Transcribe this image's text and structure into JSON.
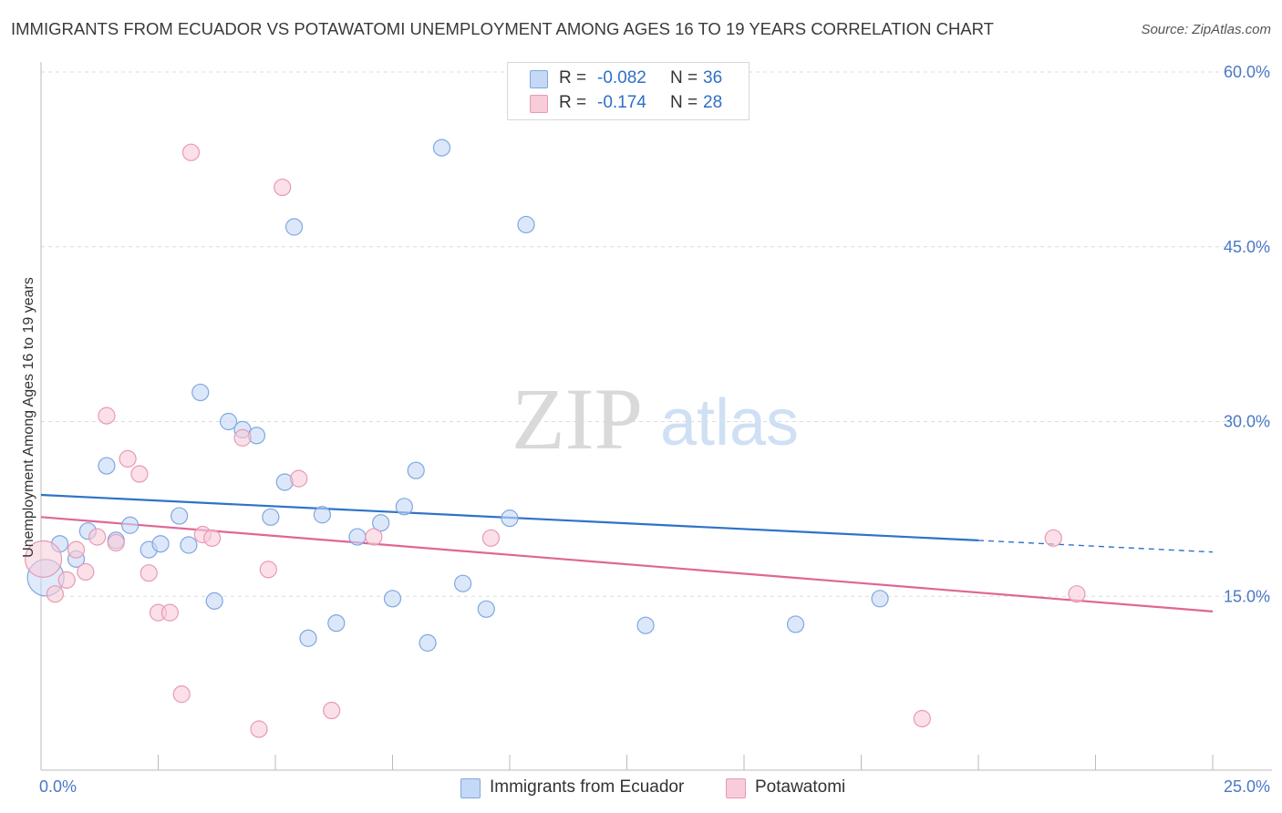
{
  "title": "IMMIGRANTS FROM ECUADOR VS POTAWATOMI UNEMPLOYMENT AMONG AGES 16 TO 19 YEARS CORRELATION CHART",
  "source": "Source: ZipAtlas.com",
  "watermark": {
    "zip": "ZIP",
    "atlas": "atlas"
  },
  "colors": {
    "blue_fill": "#c5d8f6",
    "blue_stroke": "#7fa7e0",
    "blue_line": "#2f72c9",
    "pink_fill": "#f8ccd9",
    "pink_stroke": "#e79ab4",
    "pink_line": "#e06694",
    "accent_text": "#2f6fc7"
  },
  "stats": [
    {
      "r_label": "R =",
      "r_value": "-0.082",
      "n_label": "N =",
      "n_value": "36",
      "series": "blue"
    },
    {
      "r_label": "R =",
      "r_value": "-0.174",
      "n_label": "N =",
      "n_value": "28",
      "series": "pink"
    }
  ],
  "chart_data": {
    "type": "scatter",
    "title": "IMMIGRANTS FROM ECUADOR VS POTAWATOMI UNEMPLOYMENT AMONG AGES 16 TO 19 YEARS CORRELATION CHART",
    "xlabel": "",
    "ylabel": "Unemployment Among Ages 16 to 19 years",
    "xlim": [
      0,
      25
    ],
    "ylim": [
      0,
      60
    ],
    "x_tick_labels": [
      "0.0%",
      "25.0%"
    ],
    "y_ticks": [
      15,
      30,
      45,
      60
    ],
    "y_tick_labels": [
      "15.0%",
      "30.0%",
      "45.0%",
      "60.0%"
    ],
    "grid": true,
    "legend_position": "bottom-center",
    "series": [
      {
        "name": "Immigrants from Ecuador",
        "color": "blue",
        "trend": {
          "x0": 0,
          "y0": 23.7,
          "x1": 20,
          "y1": 19.8,
          "dash_to_x": 25,
          "dash_to_y": 18.8
        },
        "points": [
          [
            0.4,
            19.5
          ],
          [
            0.75,
            18.2
          ],
          [
            1.0,
            20.6
          ],
          [
            1.4,
            26.2
          ],
          [
            1.6,
            19.8
          ],
          [
            1.9,
            21.1
          ],
          [
            2.3,
            19.0
          ],
          [
            2.55,
            19.5
          ],
          [
            2.95,
            21.9
          ],
          [
            3.15,
            19.4
          ],
          [
            3.4,
            32.5
          ],
          [
            3.7,
            14.6
          ],
          [
            4.0,
            30.0
          ],
          [
            4.3,
            29.3
          ],
          [
            4.6,
            28.8
          ],
          [
            4.9,
            21.8
          ],
          [
            5.2,
            24.8
          ],
          [
            5.4,
            46.7
          ],
          [
            5.7,
            11.4
          ],
          [
            6.0,
            22.0
          ],
          [
            6.3,
            12.7
          ],
          [
            6.75,
            20.1
          ],
          [
            7.25,
            21.3
          ],
          [
            7.5,
            14.8
          ],
          [
            7.75,
            22.7
          ],
          [
            8.0,
            25.8
          ],
          [
            8.25,
            11.0
          ],
          [
            8.55,
            53.5
          ],
          [
            9.0,
            16.1
          ],
          [
            9.5,
            13.9
          ],
          [
            10.0,
            21.7
          ],
          [
            10.35,
            46.9
          ],
          [
            12.9,
            12.5
          ],
          [
            16.1,
            12.6
          ],
          [
            17.9,
            14.8
          ],
          [
            0.1,
            16.6
          ]
        ]
      },
      {
        "name": "Potawatomi",
        "color": "pink",
        "trend": {
          "x0": 0,
          "y0": 21.8,
          "x1": 25,
          "y1": 13.7
        },
        "points": [
          [
            0.05,
            18.2
          ],
          [
            0.3,
            15.2
          ],
          [
            0.55,
            16.4
          ],
          [
            0.75,
            19.0
          ],
          [
            0.95,
            17.1
          ],
          [
            1.2,
            20.1
          ],
          [
            1.4,
            30.5
          ],
          [
            1.6,
            19.6
          ],
          [
            1.85,
            26.8
          ],
          [
            2.1,
            25.5
          ],
          [
            2.3,
            17.0
          ],
          [
            2.5,
            13.6
          ],
          [
            2.75,
            13.6
          ],
          [
            3.0,
            6.6
          ],
          [
            3.2,
            53.1
          ],
          [
            3.45,
            20.3
          ],
          [
            3.65,
            20.0
          ],
          [
            4.3,
            28.6
          ],
          [
            4.65,
            3.6
          ],
          [
            4.85,
            17.3
          ],
          [
            5.15,
            50.1
          ],
          [
            5.5,
            25.1
          ],
          [
            6.2,
            5.2
          ],
          [
            7.1,
            20.1
          ],
          [
            9.6,
            20.0
          ],
          [
            18.8,
            4.5
          ],
          [
            21.6,
            20.0
          ],
          [
            22.1,
            15.2
          ]
        ]
      }
    ]
  }
}
